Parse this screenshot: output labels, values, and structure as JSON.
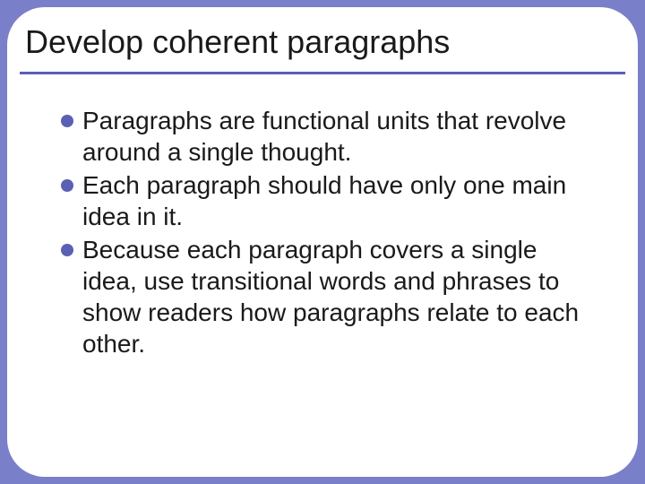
{
  "slide": {
    "title": "Develop coherent paragraphs",
    "bullets": [
      "Paragraphs are functional units that revolve around a single thought.",
      "Each paragraph should have only one main idea in it.",
      "Because each paragraph covers a single idea, use transitional words and phrases to show readers how paragraphs relate to each other."
    ],
    "style": {
      "background_color": "#7a7fc9",
      "card_background": "#ffffff",
      "card_border_radius": 42,
      "accent_color": "#5a60b5",
      "title_fontsize": 36,
      "title_color": "#1a1a1a",
      "body_fontsize": 28,
      "body_color": "#1a1a1a",
      "bullet_dot_size": 14,
      "rule_thickness": 3
    }
  }
}
